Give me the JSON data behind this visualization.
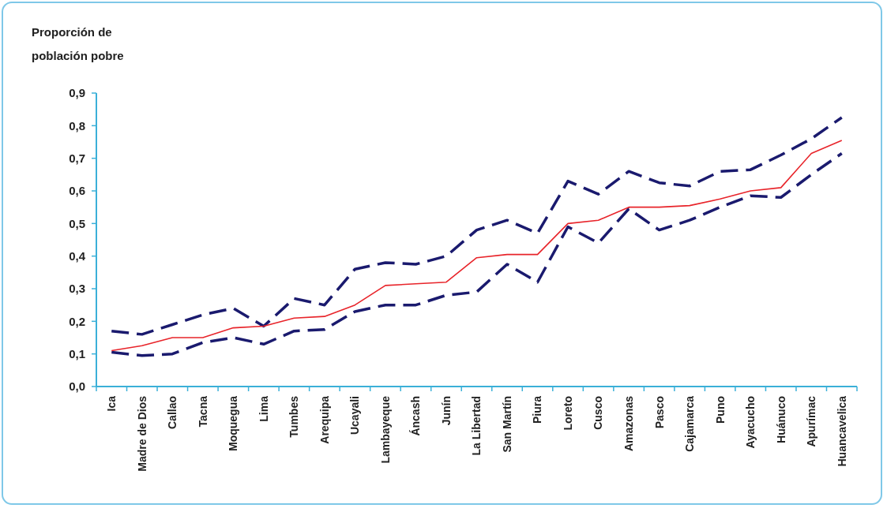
{
  "chart_data": {
    "type": "line",
    "ylabel": "Proporción de población pobre",
    "categories": [
      "Ica",
      "Madre de Dios",
      "Callao",
      "Tacna",
      "Moquegua",
      "Lima",
      "Tumbes",
      "Arequipa",
      "Ucayali",
      "Lambayeque",
      "Áncash",
      "Junín",
      "La Libertad",
      "San Martín",
      "Piura",
      "Loreto",
      "Cusco",
      "Amazonas",
      "Pasco",
      "Cajamarca",
      "Puno",
      "Ayacucho",
      "Huánuco",
      "Apurímac",
      "Huancavelica"
    ],
    "series": [
      {
        "color": "#1a1a6e",
        "line_style": "dashed",
        "values": [
          0.17,
          0.16,
          0.19,
          0.22,
          0.24,
          0.185,
          0.27,
          0.25,
          0.36,
          0.38,
          0.375,
          0.4,
          0.48,
          0.51,
          0.47,
          0.63,
          0.59,
          0.66,
          0.625,
          0.615,
          0.66,
          0.665,
          0.71,
          0.76,
          0.825
        ]
      },
      {
        "color": "#1a1a6e",
        "line_style": "dashed",
        "values": [
          0.105,
          0.095,
          0.1,
          0.135,
          0.15,
          0.13,
          0.17,
          0.175,
          0.23,
          0.25,
          0.25,
          0.28,
          0.29,
          0.375,
          0.32,
          0.49,
          0.44,
          0.545,
          0.48,
          0.51,
          0.55,
          0.585,
          0.58,
          0.65,
          0.715
        ]
      },
      {
        "color": "#e8242a",
        "line_style": "solid",
        "values": [
          0.11,
          0.125,
          0.15,
          0.15,
          0.18,
          0.185,
          0.21,
          0.215,
          0.25,
          0.31,
          0.315,
          0.32,
          0.395,
          0.405,
          0.405,
          0.5,
          0.51,
          0.55,
          0.55,
          0.555,
          0.575,
          0.6,
          0.61,
          0.715,
          0.755
        ]
      }
    ],
    "ylim": [
      0,
      0.9
    ],
    "yticks": [
      {
        "value": 0,
        "label": "0,0"
      },
      {
        "value": 0.1,
        "label": "0,1"
      },
      {
        "value": 0.2,
        "label": "0,2"
      },
      {
        "value": 0.3,
        "label": "0,3"
      },
      {
        "value": 0.4,
        "label": "0,4"
      },
      {
        "value": 0.5,
        "label": "0,5"
      },
      {
        "value": 0.6,
        "label": "0,6"
      },
      {
        "value": 0.7,
        "label": "0,7"
      },
      {
        "value": 0.8,
        "label": "0,8"
      },
      {
        "value": 0.9,
        "label": "0,9"
      }
    ],
    "grid": false,
    "marker": "none"
  }
}
